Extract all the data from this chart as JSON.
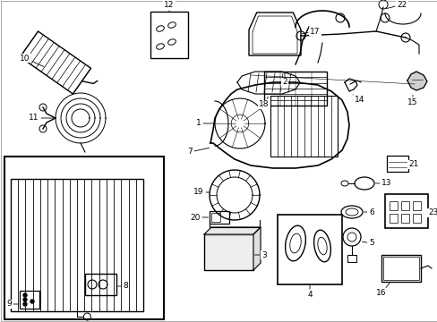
{
  "background_color": "#ffffff",
  "line_color": "#000000",
  "text_color": "#000000",
  "fig_width": 4.89,
  "fig_height": 3.6,
  "dpi": 100
}
